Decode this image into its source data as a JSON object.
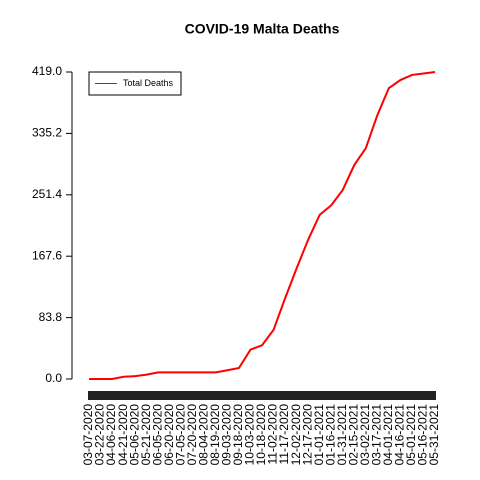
{
  "chart_data": {
    "type": "line",
    "title": "COVID-19 Malta Deaths",
    "categories": [
      "03-07-2020",
      "03-22-2020",
      "04-06-2020",
      "04-21-2020",
      "05-06-2020",
      "05-21-2020",
      "06-05-2020",
      "06-20-2020",
      "07-05-2020",
      "07-20-2020",
      "08-04-2020",
      "08-19-2020",
      "09-03-2020",
      "09-18-2020",
      "10-03-2020",
      "10-18-2020",
      "11-02-2020",
      "11-17-2020",
      "12-02-2020",
      "12-17-2020",
      "01-01-2021",
      "01-16-2021",
      "01-31-2021",
      "02-15-2021",
      "03-02-2021",
      "03-17-2021",
      "04-01-2021",
      "04-16-2021",
      "05-01-2021",
      "05-16-2021",
      "05-31-2021"
    ],
    "series": [
      {
        "name": "Total Deaths",
        "color": "#ff0000",
        "values": [
          0,
          0,
          0,
          3,
          4,
          6,
          9,
          9,
          9,
          9,
          9,
          9,
          12,
          15,
          40,
          46,
          67,
          110,
          151,
          190,
          224,
          237,
          258,
          292,
          315,
          360,
          397,
          408,
          415,
          417,
          419
        ]
      }
    ],
    "ylim": [
      0,
      419
    ],
    "yticks": [
      {
        "value": 0,
        "label": "0.0"
      },
      {
        "value": 83.8,
        "label": "83.8"
      },
      {
        "value": 167.6,
        "label": "167.6"
      },
      {
        "value": 251.4,
        "label": "251.4"
      },
      {
        "value": 335.2,
        "label": "335.2"
      },
      {
        "value": 419,
        "label": "419.0"
      }
    ],
    "legend": "top-left"
  }
}
